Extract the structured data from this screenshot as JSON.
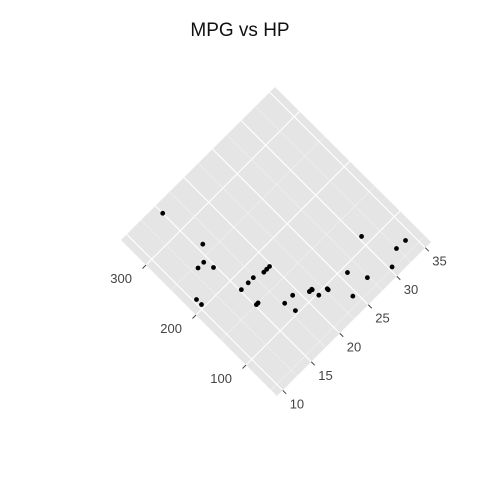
{
  "chart_data": {
    "type": "scatter",
    "title": "MPG vs HP",
    "xlabel": "",
    "ylabel": "",
    "x_axis": {
      "ticks": [
        100,
        200,
        300
      ],
      "tick_labels": [
        "100",
        "200",
        "300"
      ],
      "range": [
        38,
        350
      ]
    },
    "y_axis": {
      "ticks": [
        10,
        15,
        20,
        25,
        30,
        35
      ],
      "tick_labels": [
        "10",
        "15",
        "20",
        "25",
        "30",
        "35"
      ],
      "range": [
        9,
        36
      ]
    },
    "grid": true,
    "rotation": "rotated 45 degrees (diamond panel)",
    "points": [
      {
        "x": 110,
        "y": 21.0
      },
      {
        "x": 110,
        "y": 21.0
      },
      {
        "x": 93,
        "y": 22.8
      },
      {
        "x": 110,
        "y": 21.4
      },
      {
        "x": 175,
        "y": 18.7
      },
      {
        "x": 105,
        "y": 18.1
      },
      {
        "x": 245,
        "y": 14.3
      },
      {
        "x": 62,
        "y": 24.4
      },
      {
        "x": 95,
        "y": 22.8
      },
      {
        "x": 123,
        "y": 19.2
      },
      {
        "x": 123,
        "y": 17.8
      },
      {
        "x": 180,
        "y": 16.4
      },
      {
        "x": 180,
        "y": 17.3
      },
      {
        "x": 180,
        "y": 15.2
      },
      {
        "x": 205,
        "y": 10.4
      },
      {
        "x": 215,
        "y": 10.4
      },
      {
        "x": 230,
        "y": 14.7
      },
      {
        "x": 66,
        "y": 32.4
      },
      {
        "x": 52,
        "y": 30.4
      },
      {
        "x": 65,
        "y": 33.9
      },
      {
        "x": 97,
        "y": 21.5
      },
      {
        "x": 150,
        "y": 15.5
      },
      {
        "x": 150,
        "y": 15.2
      },
      {
        "x": 245,
        "y": 13.3
      },
      {
        "x": 175,
        "y": 19.2
      },
      {
        "x": 66,
        "y": 27.3
      },
      {
        "x": 91,
        "y": 26.0
      },
      {
        "x": 113,
        "y": 30.4
      },
      {
        "x": 264,
        "y": 15.8
      },
      {
        "x": 175,
        "y": 19.7
      },
      {
        "x": 335,
        "y": 15.0
      },
      {
        "x": 109,
        "y": 21.4
      }
    ]
  }
}
